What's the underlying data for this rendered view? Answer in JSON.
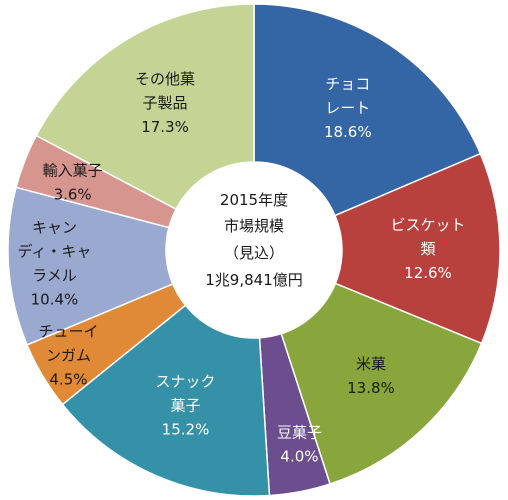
{
  "chart_data": {
    "type": "pie",
    "style": "donut",
    "center_text": [
      "2015年度",
      "市場規模",
      "（見込）",
      "1兆9,841億円"
    ],
    "slices": [
      {
        "name_lines": [
          "チョコ",
          "レート"
        ],
        "percent_label": "18.6%",
        "value": 18.6,
        "color": "#3465A4",
        "label_color": "#ffffff"
      },
      {
        "name_lines": [
          "ビスケット",
          "類"
        ],
        "percent_label": "12.6%",
        "value": 12.6,
        "color": "#B8413D",
        "label_color": "#ffffff"
      },
      {
        "name_lines": [
          "米菓"
        ],
        "percent_label": "13.8%",
        "value": 13.8,
        "color": "#89A63C",
        "label_color": "#1a1a1a"
      },
      {
        "name_lines": [
          "豆菓子"
        ],
        "percent_label": "4.0%",
        "value": 4.0,
        "color": "#6C4E8E",
        "label_color": "#ffffff"
      },
      {
        "name_lines": [
          "スナック",
          "菓子"
        ],
        "percent_label": "15.2%",
        "value": 15.2,
        "color": "#3591A8",
        "label_color": "#ffffff"
      },
      {
        "name_lines": [
          "チューイ",
          "ンガム"
        ],
        "percent_label": "4.5%",
        "value": 4.5,
        "color": "#E08A37",
        "label_color": "#1a1a1a"
      },
      {
        "name_lines": [
          "キャン",
          "ディ・キャ",
          "ラメル"
        ],
        "percent_label": "10.4%",
        "value": 10.4,
        "color": "#9AA9D0",
        "label_color": "#1a1a1a"
      },
      {
        "name_lines": [
          "輸入菓子"
        ],
        "percent_label": "3.6%",
        "value": 3.6,
        "color": "#D79590",
        "label_color": "#1a1a1a"
      },
      {
        "name_lines": [
          "その他菓",
          "子製品"
        ],
        "percent_label": "17.3%",
        "value": 17.3,
        "color": "#C5D395",
        "label_color": "#1a1a1a"
      }
    ]
  }
}
